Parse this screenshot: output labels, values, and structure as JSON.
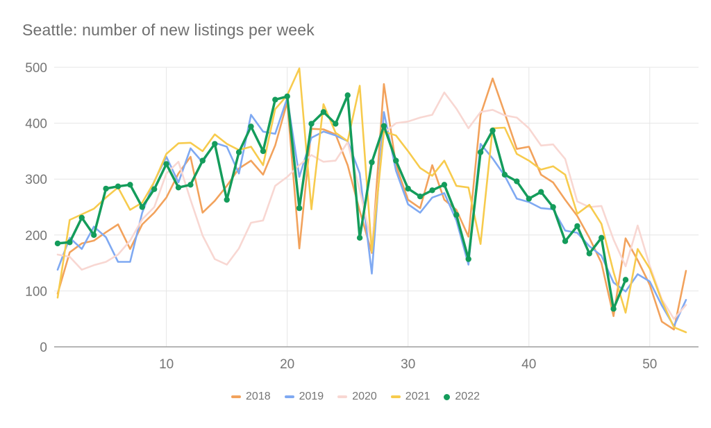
{
  "title": "Seattle: number of new listings per week",
  "colors": {
    "title_text": "#6e6e6e",
    "axis_text": "#757575",
    "gridline": "#e6e6e6",
    "axis_line": "#9e9e9e",
    "background": "#ffffff"
  },
  "chart_data": {
    "type": "line",
    "title": "Seattle: number of new listings per week",
    "xlabel": "",
    "ylabel": "",
    "xlim": [
      1,
      53
    ],
    "ylim": [
      0,
      500
    ],
    "x_ticks": [
      10,
      20,
      30,
      40,
      50
    ],
    "y_ticks": [
      0,
      100,
      200,
      300,
      400,
      500
    ],
    "grid": true,
    "legend_position": "bottom",
    "x_unit": "week number",
    "series": [
      {
        "name": "2018",
        "color": "#F2A25C",
        "style": "line",
        "values": [
          95,
          169,
          185,
          190,
          205,
          219,
          175,
          219,
          240,
          267,
          310,
          340,
          240,
          261,
          288,
          319,
          333,
          308,
          360,
          438,
          176,
          390,
          389,
          380,
          325,
          243,
          168,
          470,
          325,
          263,
          248,
          325,
          263,
          245,
          197,
          415,
          480,
          418,
          354,
          358,
          308,
          294,
          263,
          234,
          195,
          150,
          55,
          194,
          155,
          111,
          45,
          31,
          136
        ]
      },
      {
        "name": "2019",
        "color": "#7FA9F2",
        "style": "line",
        "values": [
          138,
          195,
          175,
          215,
          196,
          152,
          152,
          240,
          296,
          340,
          294,
          355,
          330,
          365,
          358,
          310,
          415,
          385,
          381,
          445,
          304,
          374,
          385,
          378,
          368,
          310,
          131,
          420,
          315,
          255,
          240,
          267,
          275,
          226,
          147,
          363,
          337,
          306,
          265,
          259,
          248,
          246,
          208,
          204,
          180,
          163,
          115,
          99,
          130,
          117,
          74,
          37,
          84
        ]
      },
      {
        "name": "2020",
        "color": "#F8D7D2",
        "style": "line",
        "values": [
          165,
          161,
          138,
          146,
          152,
          165,
          190,
          228,
          250,
          310,
          331,
          263,
          199,
          157,
          147,
          176,
          222,
          226,
          288,
          304,
          325,
          343,
          331,
          333,
          366,
          280,
          184,
          383,
          400,
          403,
          410,
          415,
          455,
          426,
          391,
          420,
          424,
          414,
          410,
          391,
          360,
          362,
          336,
          260,
          250,
          252,
          192,
          144,
          217,
          145,
          85,
          50,
          75
        ]
      },
      {
        "name": "2021",
        "color": "#F7CB4D",
        "style": "line",
        "values": [
          88,
          227,
          237,
          247,
          267,
          285,
          245,
          258,
          295,
          345,
          364,
          365,
          350,
          380,
          363,
          352,
          358,
          325,
          425,
          450,
          498,
          246,
          434,
          383,
          368,
          467,
          170,
          385,
          378,
          350,
          320,
          306,
          333,
          288,
          285,
          184,
          391,
          392,
          345,
          333,
          317,
          323,
          308,
          238,
          254,
          220,
          134,
          61,
          175,
          140,
          82,
          35,
          26
        ]
      },
      {
        "name": "2022",
        "color": "#149C5B",
        "style": "line+markers",
        "values": [
          185,
          187,
          231,
          200,
          283,
          287,
          290,
          250,
          282,
          327,
          285,
          290,
          333,
          363,
          263,
          348,
          394,
          350,
          442,
          448,
          248,
          399,
          420,
          399,
          450,
          195,
          330,
          395,
          333,
          283,
          269,
          280,
          290,
          236,
          157,
          348,
          387,
          308,
          296,
          265,
          277,
          250,
          189,
          216,
          167,
          195,
          68,
          120
        ]
      }
    ]
  },
  "legend": {
    "items": [
      {
        "label": "2018"
      },
      {
        "label": "2019"
      },
      {
        "label": "2020"
      },
      {
        "label": "2021"
      },
      {
        "label": "2022"
      }
    ]
  }
}
